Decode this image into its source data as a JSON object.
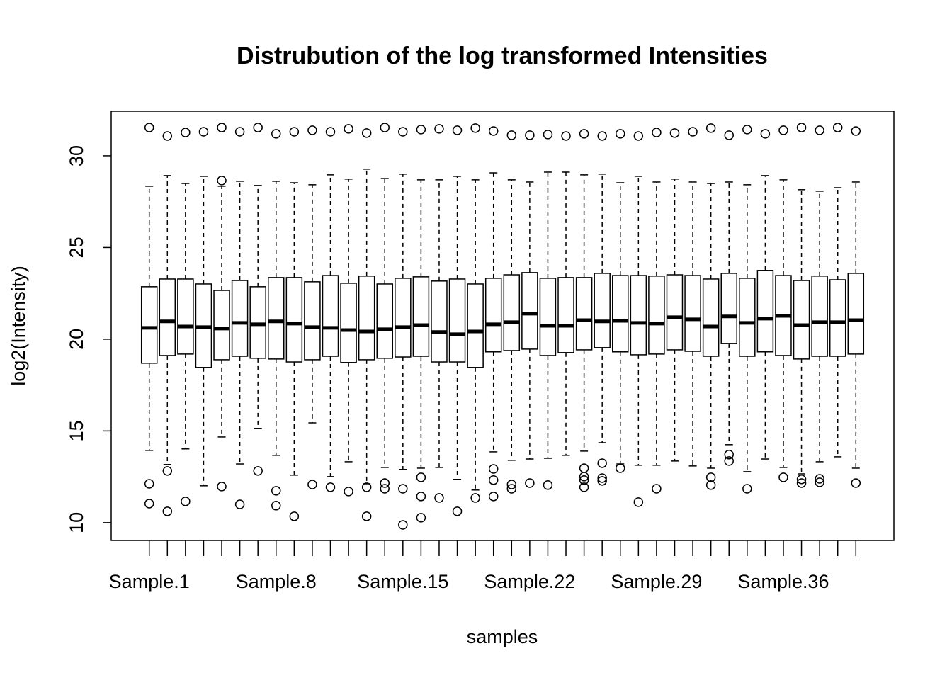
{
  "chart_data": {
    "type": "box",
    "title": "Distrubution of the log transformed Intensities",
    "x_label": "samples",
    "y_label": "log2(Intensity)",
    "categories": [
      "Sample.1",
      null,
      null,
      null,
      null,
      null,
      null,
      "Sample.8",
      null,
      null,
      null,
      null,
      null,
      null,
      "Sample.15",
      null,
      null,
      null,
      null,
      null,
      null,
      "Sample.22",
      null,
      null,
      null,
      null,
      null,
      null,
      "Sample.29",
      null,
      null,
      null,
      null,
      null,
      null,
      "Sample.36",
      null,
      null,
      null,
      null
    ],
    "ylim": [
      9.03,
      32.43
    ],
    "yticks": [
      10,
      15,
      20,
      25,
      30
    ],
    "color": "#000000",
    "boxes": [
      {
        "whisker_low": 13.94,
        "q1": 18.69,
        "median": 20.62,
        "q3": 22.86,
        "whisker_high": 28.34,
        "outliers": [
          31.54,
          12.12,
          11.04
        ]
      },
      {
        "whisker_low": 13.17,
        "q1": 19.11,
        "median": 20.97,
        "q3": 23.28,
        "whisker_high": 28.92,
        "outliers": [
          31.08,
          12.82,
          10.62
        ]
      },
      {
        "whisker_low": 14.02,
        "q1": 19.19,
        "median": 20.69,
        "q3": 23.28,
        "whisker_high": 28.49,
        "outliers": [
          31.27,
          11.16
        ]
      },
      {
        "whisker_low": 12.01,
        "q1": 18.46,
        "median": 20.66,
        "q3": 23.01,
        "whisker_high": 28.88,
        "outliers": [
          31.31
        ]
      },
      {
        "whisker_low": 14.67,
        "q1": 18.88,
        "median": 20.58,
        "q3": 22.66,
        "whisker_high": 28.34,
        "outliers": [
          31.54,
          28.65,
          11.97
        ]
      },
      {
        "whisker_low": 13.2,
        "q1": 19.07,
        "median": 20.89,
        "q3": 23.2,
        "whisker_high": 28.61,
        "outliers": [
          31.31,
          11.0
        ]
      },
      {
        "whisker_low": 15.14,
        "q1": 18.96,
        "median": 20.81,
        "q3": 22.86,
        "whisker_high": 28.38,
        "outliers": [
          31.54,
          12.82
        ]
      },
      {
        "whisker_low": 13.67,
        "q1": 18.92,
        "median": 20.97,
        "q3": 23.36,
        "whisker_high": 28.61,
        "outliers": [
          31.2,
          11.74,
          10.93
        ]
      },
      {
        "whisker_low": 12.59,
        "q1": 18.76,
        "median": 20.85,
        "q3": 23.36,
        "whisker_high": 28.53,
        "outliers": [
          31.31,
          10.35
        ]
      },
      {
        "whisker_low": 15.44,
        "q1": 18.88,
        "median": 20.66,
        "q3": 23.13,
        "whisker_high": 28.42,
        "outliers": [
          31.39,
          12.08
        ]
      },
      {
        "whisker_low": 12.51,
        "q1": 19.07,
        "median": 20.62,
        "q3": 23.47,
        "whisker_high": 28.96,
        "outliers": [
          31.31,
          11.93
        ]
      },
      {
        "whisker_low": 13.32,
        "q1": 18.73,
        "median": 20.5,
        "q3": 23.05,
        "whisker_high": 28.73,
        "outliers": [
          31.47,
          11.7
        ]
      },
      {
        "whisker_low": 12.12,
        "q1": 18.88,
        "median": 20.42,
        "q3": 23.44,
        "whisker_high": 29.27,
        "outliers": [
          31.24,
          11.93,
          10.35
        ]
      },
      {
        "whisker_low": 13.01,
        "q1": 18.96,
        "median": 20.54,
        "q3": 23.01,
        "whisker_high": 28.76,
        "outliers": [
          31.54,
          12.16,
          11.85
        ]
      },
      {
        "whisker_low": 12.9,
        "q1": 19.03,
        "median": 20.66,
        "q3": 23.32,
        "whisker_high": 29.0,
        "outliers": [
          31.31,
          11.85,
          9.88
        ]
      },
      {
        "whisker_low": 12.97,
        "q1": 19.07,
        "median": 20.77,
        "q3": 23.4,
        "whisker_high": 28.69,
        "outliers": [
          31.43,
          12.47,
          11.43,
          10.27
        ]
      },
      {
        "whisker_low": 13.01,
        "q1": 18.76,
        "median": 20.39,
        "q3": 23.17,
        "whisker_high": 28.69,
        "outliers": [
          31.47,
          11.35
        ]
      },
      {
        "whisker_low": 12.36,
        "q1": 18.76,
        "median": 20.27,
        "q3": 23.28,
        "whisker_high": 28.88,
        "outliers": [
          31.39,
          10.62
        ]
      },
      {
        "whisker_low": 11.78,
        "q1": 18.46,
        "median": 20.42,
        "q3": 23.01,
        "whisker_high": 28.69,
        "outliers": [
          31.51,
          11.35
        ]
      },
      {
        "whisker_low": 13.86,
        "q1": 19.31,
        "median": 20.81,
        "q3": 23.32,
        "whisker_high": 29.07,
        "outliers": [
          31.35,
          12.93,
          12.32,
          11.43
        ]
      },
      {
        "whisker_low": 13.4,
        "q1": 19.38,
        "median": 20.93,
        "q3": 23.51,
        "whisker_high": 28.69,
        "outliers": [
          31.12,
          12.08,
          11.85
        ]
      },
      {
        "whisker_low": 13.47,
        "q1": 19.46,
        "median": 21.39,
        "q3": 23.63,
        "whisker_high": 28.57,
        "outliers": [
          31.12,
          12.16
        ]
      },
      {
        "whisker_low": 13.51,
        "q1": 19.11,
        "median": 20.73,
        "q3": 23.32,
        "whisker_high": 29.11,
        "outliers": [
          31.16,
          12.05
        ]
      },
      {
        "whisker_low": 13.67,
        "q1": 19.27,
        "median": 20.73,
        "q3": 23.36,
        "whisker_high": 29.11,
        "outliers": [
          31.08
        ]
      },
      {
        "whisker_low": 13.9,
        "q1": 19.42,
        "median": 21.04,
        "q3": 23.36,
        "whisker_high": 28.96,
        "outliers": [
          31.2,
          12.97,
          12.51,
          12.32,
          11.93
        ]
      },
      {
        "whisker_low": 14.36,
        "q1": 19.54,
        "median": 20.97,
        "q3": 23.59,
        "whisker_high": 29.0,
        "outliers": [
          31.08,
          13.24,
          12.43,
          12.28
        ]
      },
      {
        "whisker_low": 13.2,
        "q1": 19.31,
        "median": 21.0,
        "q3": 23.47,
        "whisker_high": 28.53,
        "outliers": [
          31.2,
          12.97
        ]
      },
      {
        "whisker_low": 13.13,
        "q1": 19.15,
        "median": 20.89,
        "q3": 23.47,
        "whisker_high": 28.88,
        "outliers": [
          31.08,
          11.12
        ]
      },
      {
        "whisker_low": 13.13,
        "q1": 19.19,
        "median": 20.85,
        "q3": 23.44,
        "whisker_high": 28.57,
        "outliers": [
          31.27,
          11.85
        ]
      },
      {
        "whisker_low": 13.36,
        "q1": 19.42,
        "median": 21.2,
        "q3": 23.51,
        "whisker_high": 28.73,
        "outliers": [
          31.24
        ]
      },
      {
        "whisker_low": 13.09,
        "q1": 19.34,
        "median": 21.08,
        "q3": 23.47,
        "whisker_high": 28.57,
        "outliers": [
          31.31
        ]
      },
      {
        "whisker_low": 12.97,
        "q1": 19.07,
        "median": 20.69,
        "q3": 23.28,
        "whisker_high": 28.49,
        "outliers": [
          31.51,
          12.47,
          12.05
        ]
      },
      {
        "whisker_low": 14.25,
        "q1": 19.77,
        "median": 21.24,
        "q3": 23.59,
        "whisker_high": 28.57,
        "outliers": [
          31.12,
          13.71,
          13.36
        ]
      },
      {
        "whisker_low": 12.78,
        "q1": 19.07,
        "median": 20.89,
        "q3": 23.32,
        "whisker_high": 28.42,
        "outliers": [
          31.43,
          11.85
        ]
      },
      {
        "whisker_low": 13.47,
        "q1": 19.31,
        "median": 21.12,
        "q3": 23.75,
        "whisker_high": 28.92,
        "outliers": [
          31.2
        ]
      },
      {
        "whisker_low": 13.01,
        "q1": 19.11,
        "median": 21.27,
        "q3": 23.47,
        "whisker_high": 28.69,
        "outliers": [
          31.39,
          12.47
        ]
      },
      {
        "whisker_low": 12.66,
        "q1": 18.92,
        "median": 20.77,
        "q3": 23.2,
        "whisker_high": 28.15,
        "outliers": [
          31.54,
          12.36,
          12.16
        ]
      },
      {
        "whisker_low": 13.32,
        "q1": 19.07,
        "median": 20.93,
        "q3": 23.44,
        "whisker_high": 28.07,
        "outliers": [
          31.39,
          12.39,
          12.2
        ]
      },
      {
        "whisker_low": 13.59,
        "q1": 19.07,
        "median": 20.93,
        "q3": 23.24,
        "whisker_high": 28.26,
        "outliers": [
          31.54
        ]
      },
      {
        "whisker_low": 12.97,
        "q1": 19.19,
        "median": 21.04,
        "q3": 23.59,
        "whisker_high": 28.57,
        "outliers": [
          31.35,
          12.16
        ]
      }
    ]
  }
}
